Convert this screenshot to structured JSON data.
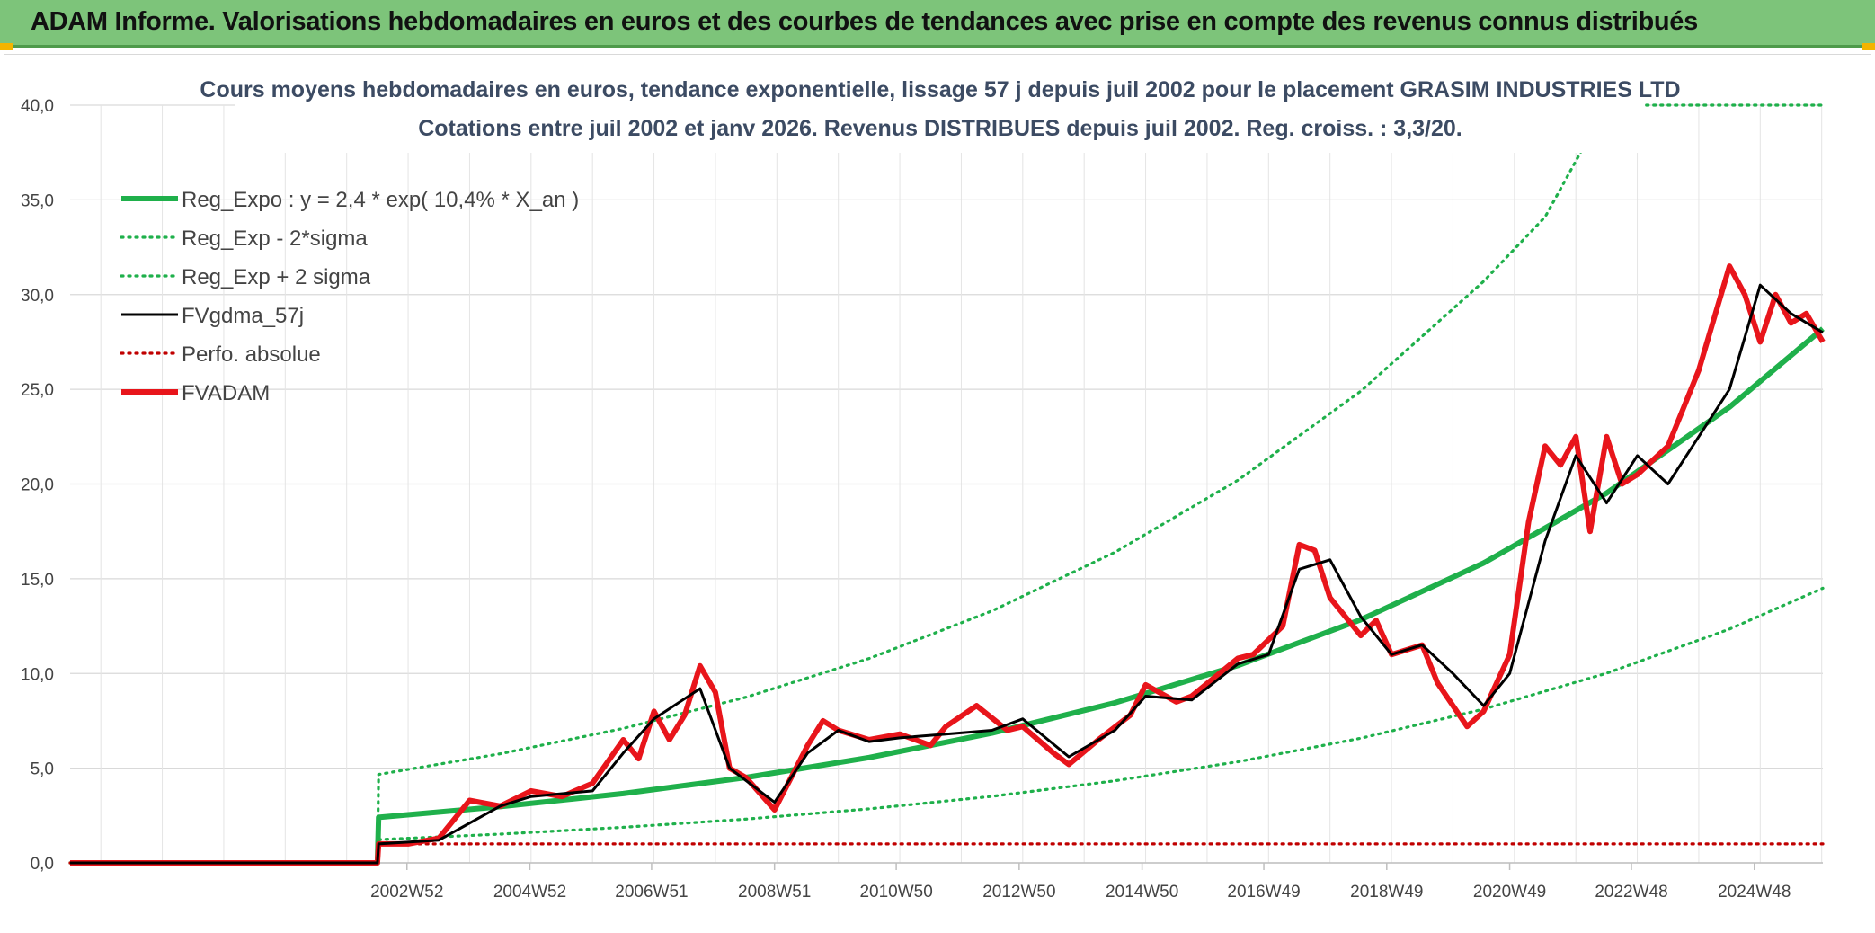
{
  "header": {
    "title": "ADAM Informe. Valorisations hebdomadaires en euros et des courbes de tendances avec prise en compte des revenus connus distribués"
  },
  "colors": {
    "header_bg": "#7dc47a",
    "trend_green": "#1fb04b",
    "price_red": "#e8151b",
    "smooth_black": "#000000",
    "perf_red": "#c00000"
  },
  "chart_data": {
    "type": "line",
    "title_line1": "Cours moyens hebdomadaires en euros, tendance exponentielle, lissage 57 j depuis juil 2002 pour le placement GRASIM INDUSTRIES LTD",
    "title_line2": "Cotations entre juil 2002 et janv 2026. Revenus DISTRIBUES depuis juil 2002. Reg. croiss. : 3,3/20.",
    "ylim": [
      0,
      40
    ],
    "y_ticks": [
      "0,0",
      "5,0",
      "10,0",
      "15,0",
      "20,0",
      "25,0",
      "30,0",
      "35,0",
      "40,0"
    ],
    "x_tick_labels": [
      "2002W52",
      "2004W52",
      "2006W51",
      "2008W51",
      "2010W50",
      "2012W50",
      "2014W50",
      "2016W49",
      "2018W49",
      "2020W49",
      "2022W48",
      "2024W48"
    ],
    "x_range": [
      "1997W27",
      "2026W02"
    ],
    "grid": true,
    "legend_position": "top-left",
    "series": [
      {
        "name": "Reg_Expo : y = 2,4 * exp( 10,4% *  X_an )",
        "style": "solid-thick",
        "color": "#1fb04b",
        "x": [
          "1997W27",
          "2002W27",
          "2002W28",
          "2004W27",
          "2006W27",
          "2008W27",
          "2010W27",
          "2012W27",
          "2014W27",
          "2016W27",
          "2018W27",
          "2020W27",
          "2022W27",
          "2024W27",
          "2026W02"
        ],
        "y": [
          0,
          0,
          2.4,
          2.97,
          3.66,
          4.51,
          5.56,
          6.85,
          8.45,
          10.42,
          12.84,
          15.83,
          19.52,
          24.06,
          28.2
        ]
      },
      {
        "name": "Reg_Exp - 2*sigma",
        "style": "dotted",
        "color": "#1fb04b",
        "x": [
          "1997W27",
          "2002W27",
          "2002W28",
          "2004W27",
          "2006W27",
          "2008W27",
          "2010W27",
          "2012W27",
          "2014W27",
          "2016W27",
          "2018W27",
          "2020W27",
          "2022W27",
          "2024W27",
          "2026W02"
        ],
        "y": [
          0,
          0,
          1.23,
          1.52,
          1.88,
          2.31,
          2.85,
          3.51,
          4.33,
          5.34,
          6.58,
          8.12,
          10.01,
          12.34,
          14.5
        ]
      },
      {
        "name": "Reg_Exp + 2 sigma",
        "style": "dotted",
        "color": "#1fb04b",
        "x": [
          "1997W27",
          "2002W27",
          "2002W28",
          "2004W27",
          "2006W27",
          "2008W27",
          "2010W27",
          "2012W27",
          "2014W27",
          "2016W27",
          "2018W27",
          "2020W27",
          "2021W27",
          "2022W27",
          "2026W02"
        ],
        "y": [
          0,
          0,
          4.67,
          5.76,
          7.1,
          8.75,
          10.79,
          13.3,
          16.4,
          20.2,
          24.9,
          30.7,
          34.1,
          40,
          40
        ]
      },
      {
        "name": "FVgdma_57j",
        "style": "solid",
        "color": "#000000",
        "x": [
          "1997W27",
          "2002W27",
          "2002W28",
          "2003W27",
          "2004W27",
          "2005W01",
          "2006W01",
          "2006W27",
          "2007W01",
          "2007W40",
          "2008W13",
          "2008W51",
          "2009W27",
          "2010W01",
          "2010W27",
          "2011W01",
          "2011W40",
          "2012W27",
          "2013W01",
          "2013W40",
          "2014W27",
          "2015W01",
          "2015W40",
          "2016W27",
          "2017W01",
          "2017W27",
          "2018W01",
          "2018W27",
          "2019W01",
          "2019W27",
          "2020W01",
          "2020W27",
          "2020W49",
          "2021W27",
          "2022W01",
          "2022W27",
          "2023W01",
          "2023W27",
          "2024W01",
          "2024W27",
          "2025W01",
          "2025W27",
          "2026W02"
        ],
        "y": [
          0,
          0,
          1.0,
          1.2,
          3.0,
          3.5,
          3.8,
          5.8,
          7.6,
          9.2,
          5.0,
          3.2,
          5.8,
          7.0,
          6.4,
          6.6,
          6.8,
          7.0,
          7.6,
          5.6,
          7.0,
          8.8,
          8.6,
          10.5,
          11.0,
          15.5,
          16.0,
          13.0,
          11.0,
          11.5,
          10.0,
          8.3,
          10.0,
          17.0,
          21.5,
          19.0,
          21.5,
          20.0,
          22.5,
          25.0,
          30.5,
          29.0,
          28.0
        ]
      },
      {
        "name": "Perfo. absolue",
        "style": "dotted",
        "color": "#c00000",
        "x": [
          "1997W27",
          "2002W27",
          "2002W28",
          "2026W02"
        ],
        "y": [
          0,
          0,
          1.0,
          1.0
        ]
      },
      {
        "name": "FVADAM",
        "style": "solid-thick",
        "color": "#e8151b",
        "x": [
          "1997W27",
          "2002W27",
          "2002W28",
          "2003W01",
          "2003W27",
          "2004W01",
          "2004W27",
          "2005W01",
          "2005W27",
          "2006W01",
          "2006W27",
          "2006W40",
          "2007W01",
          "2007W14",
          "2007W27",
          "2007W40",
          "2008W01",
          "2008W13",
          "2008W27",
          "2008W51",
          "2009W13",
          "2009W27",
          "2009W40",
          "2010W01",
          "2010W27",
          "2011W01",
          "2011W27",
          "2011W40",
          "2012W14",
          "2012W40",
          "2013W01",
          "2013W27",
          "2013W40",
          "2014W13",
          "2014W40",
          "2015W01",
          "2015W27",
          "2015W40",
          "2016W27",
          "2016W40",
          "2017W13",
          "2017W27",
          "2017W40",
          "2018W01",
          "2018W27",
          "2018W40",
          "2019W01",
          "2019W27",
          "2019W40",
          "2020W13",
          "2020W27",
          "2020W49",
          "2021W13",
          "2021W27",
          "2021W40",
          "2022W01",
          "2022W13",
          "2022W27",
          "2022W40",
          "2023W01",
          "2023W27",
          "2023W40",
          "2024W01",
          "2024W27",
          "2024W40",
          "2025W01",
          "2025W14",
          "2025W27",
          "2025W40",
          "2026W02"
        ],
        "y": [
          0,
          0,
          1.0,
          1.0,
          1.3,
          3.3,
          3.0,
          3.8,
          3.5,
          4.2,
          6.5,
          5.5,
          8.0,
          6.5,
          7.8,
          10.4,
          9.0,
          5.0,
          4.5,
          2.8,
          4.5,
          6.2,
          7.5,
          7.0,
          6.5,
          6.8,
          6.2,
          7.2,
          8.3,
          7.0,
          7.2,
          5.8,
          5.2,
          6.5,
          7.8,
          9.4,
          8.5,
          8.8,
          10.8,
          11.0,
          12.5,
          16.8,
          16.5,
          14.0,
          12.0,
          12.8,
          11.0,
          11.5,
          9.5,
          7.2,
          8.0,
          11.0,
          18.0,
          22.0,
          21.0,
          22.5,
          17.5,
          22.5,
          20.0,
          20.5,
          22.0,
          24.0,
          26.0,
          31.5,
          30.0,
          27.5,
          30.0,
          28.5,
          29.0,
          27.5
        ]
      }
    ]
  }
}
